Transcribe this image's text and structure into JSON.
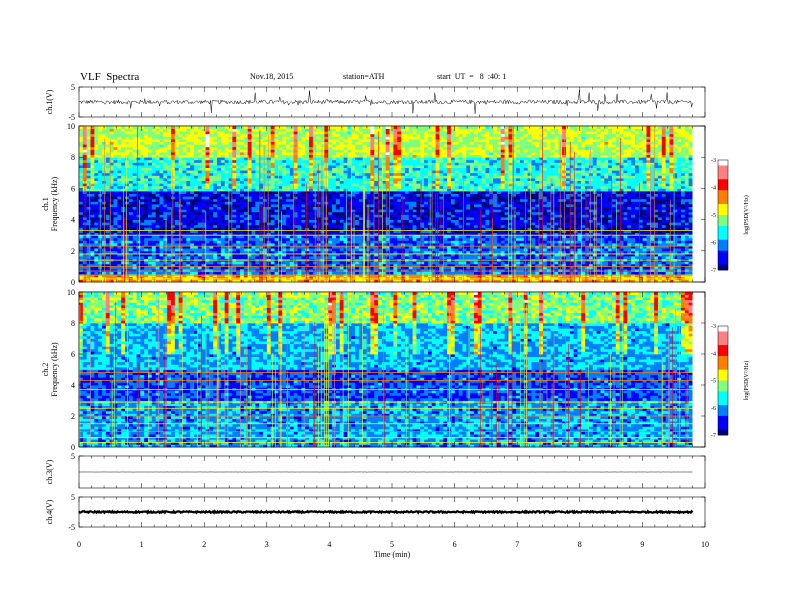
{
  "header": {
    "title": "VLF  Spectra",
    "date": "Nov.18, 2015",
    "station": "station=ATH",
    "start": "start  UT  =   8  :40: 1"
  },
  "colorbar": {
    "label": "log(PSD(V²/Hz)",
    "ticks": [
      "-3",
      "-4",
      "-5",
      "-6",
      "-7"
    ]
  },
  "chart_data": [
    {
      "type": "line",
      "name": "ch.1(V)",
      "ylabel": "ch.1(V)",
      "ylim": [
        -5,
        5
      ],
      "yticks": [
        "5",
        "-5"
      ],
      "description_values": {
        "baseline": 0,
        "typical_noise": 0.7,
        "spike_max": 3.5
      }
    },
    {
      "type": "heatmap",
      "ylabel_top": "ch.1",
      "ylabel": "Frequency  (kHz)",
      "ylim": [
        0,
        10
      ],
      "yticks": [
        "0",
        "2",
        "4",
        "6",
        "8",
        "10"
      ],
      "zlabel": "log(PSD(V²/Hz)",
      "zlim": [
        -7,
        -3
      ],
      "bands": [
        {
          "f_lo": 0.0,
          "f_hi": 0.5,
          "level": -4.5
        },
        {
          "f_lo": 0.5,
          "f_hi": 3.0,
          "level": -6.2
        },
        {
          "f_lo": 3.0,
          "f_hi": 5.8,
          "level": -6.6
        },
        {
          "f_lo": 5.8,
          "f_hi": 8.0,
          "level": -5.6
        },
        {
          "f_lo": 8.0,
          "f_hi": 10.0,
          "level": -5.0
        }
      ]
    },
    {
      "type": "heatmap",
      "ylabel_top": "ch.2",
      "ylabel": "Frequency  (kHz)",
      "ylim": [
        0,
        10
      ],
      "yticks": [
        "0",
        "2",
        "4",
        "6",
        "8",
        "10"
      ],
      "zlabel": "log(PSD(V²/Hz)",
      "zlim": [
        -7,
        -3
      ],
      "bands": [
        {
          "f_lo": 0.0,
          "f_hi": 3.0,
          "level": -6.0
        },
        {
          "f_lo": 3.0,
          "f_hi": 5.0,
          "level": -6.3
        },
        {
          "f_lo": 5.0,
          "f_hi": 8.0,
          "level": -5.9
        },
        {
          "f_lo": 8.0,
          "f_hi": 10.0,
          "level": -5.2
        }
      ]
    },
    {
      "type": "line",
      "name": "ch.3(V)",
      "ylabel": "ch.3(V)",
      "ylim": [
        -5,
        5
      ],
      "yticks": [
        "5"
      ],
      "description_values": {
        "baseline": 0,
        "typical_noise": 0.0
      }
    },
    {
      "type": "line",
      "name": "ch.4(V)",
      "ylabel": "ch.4(V)",
      "ylim": [
        -5,
        5
      ],
      "yticks": [
        "5",
        "-5"
      ],
      "description_values": {
        "baseline": 0,
        "typical_noise": 0.25
      }
    }
  ],
  "xaxis": {
    "xlabel": "Time  (min)",
    "xlim": [
      0,
      10
    ],
    "ticks": [
      "0",
      "1",
      "2",
      "3",
      "4",
      "5",
      "6",
      "7",
      "8",
      "9",
      "10"
    ],
    "data_end": 9.8
  },
  "colors": {
    "jet": [
      "#00007f",
      "#0000ff",
      "#007fff",
      "#00ffff",
      "#7fff7f",
      "#ffff00",
      "#ff7f00",
      "#ff0000",
      "#ff8080",
      "#ffffff"
    ]
  }
}
